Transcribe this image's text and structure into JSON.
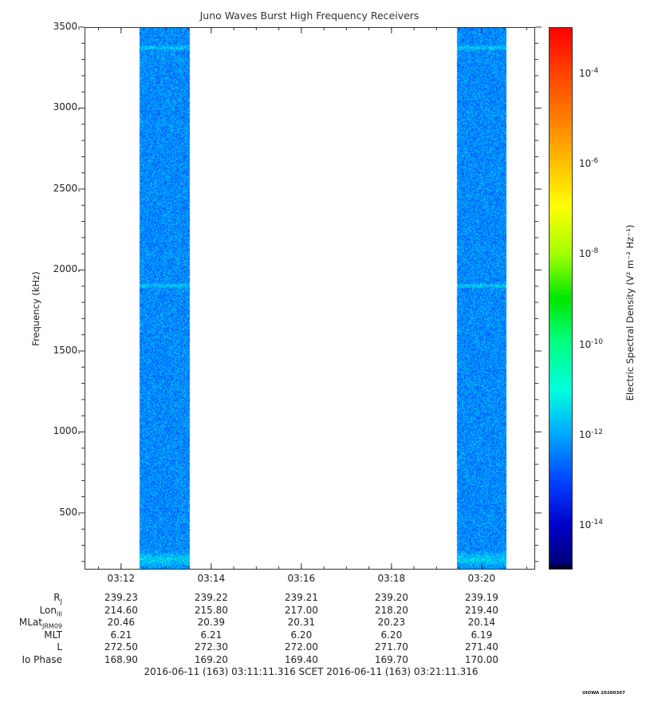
{
  "chart_data": {
    "type": "heatmap",
    "title": "Juno Waves Burst High Frequency Receivers",
    "ylabel": "Frequency (kHz)",
    "ylim": [
      150,
      3500
    ],
    "y_ticks": [
      "3500.",
      "3000.",
      "2500.",
      "2000.",
      "1500.",
      "1000.",
      "500."
    ],
    "y_tick_values": [
      3500,
      3000,
      2500,
      2000,
      1500,
      1000,
      500
    ],
    "x_ticks": [
      "03:12",
      "03:14",
      "03:16",
      "03:18",
      "03:20"
    ],
    "x_range": [
      "03:11:11.316",
      "03:21:11.316"
    ],
    "data_blocks": [
      {
        "start": "03:12:24",
        "end": "03:13:30",
        "typical_log10_value": -12.3
      },
      {
        "start": "03:19:26",
        "end": "03:20:32",
        "typical_log10_value": -12.3
      }
    ],
    "enhanced_bands_khz": [
      3380,
      1910,
      220
    ],
    "colorbar": {
      "label": "Electric Spectral Density (V² m⁻² Hz⁻¹)",
      "tick_exponents": [
        "-4",
        "-6",
        "-8",
        "-10",
        "-12",
        "-14"
      ],
      "range_log10": [
        -15,
        -3
      ]
    }
  },
  "labels": {
    "y_axis": "Frequency (kHz)",
    "colorbar_prefix": "Electric Spectral Density (V",
    "colorbar_units": "Electric Spectral Density (V² m⁻² Hz⁻¹)",
    "colorbar_base": "10"
  },
  "ephemeris": {
    "rows": [
      {
        "name": "R",
        "sub": "J",
        "values": [
          "239.23",
          "239.22",
          "239.21",
          "239.20",
          "239.19"
        ]
      },
      {
        "name": "Lon",
        "sub": "III",
        "values": [
          "214.60",
          "215.80",
          "217.00",
          "218.20",
          "219.40"
        ]
      },
      {
        "name": "MLat",
        "sub": "JRM09",
        "values": [
          "20.46",
          "20.39",
          "20.31",
          "20.23",
          "20.14"
        ]
      },
      {
        "name": "MLT",
        "sub": "",
        "values": [
          "6.21",
          "6.21",
          "6.20",
          "6.20",
          "6.19"
        ]
      },
      {
        "name": "L",
        "sub": "",
        "values": [
          "272.50",
          "272.30",
          "272.00",
          "271.70",
          "271.40"
        ]
      },
      {
        "name": "Io Phase",
        "sub": "",
        "values": [
          "168.90",
          "169.20",
          "169.40",
          "169.70",
          "170.00"
        ]
      }
    ]
  },
  "footer": {
    "scet_range": "2016-06-11 (163) 03:11:11.316     SCET     2016-06-11 (163) 03:21:11.316",
    "stamp": "UIOWA 20200307"
  }
}
